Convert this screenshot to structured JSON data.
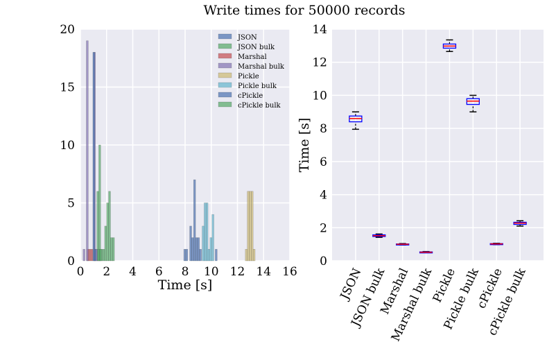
{
  "figure": {
    "suptitle": "Write times for 50000 records"
  },
  "colors": {
    "axes_bg": "#eaeaf2",
    "grid": "#ffffff",
    "box_edge": "#0000ff",
    "median": "#ff0000",
    "whisker": "#000000"
  },
  "chart_data": [
    {
      "type": "histogram",
      "xlabel": "Time [s]",
      "ylabel": "",
      "xlim": [
        0,
        16
      ],
      "ylim": [
        0,
        20
      ],
      "xticks": [
        "0",
        "2",
        "4",
        "6",
        "8",
        "10",
        "12",
        "14",
        "16"
      ],
      "yticks": [
        "0",
        "5",
        "10",
        "15",
        "20"
      ],
      "grid": true,
      "legend_position": "top-right",
      "bin_width": 0.15,
      "series": [
        {
          "name": "JSON",
          "color": "#4c72b0",
          "bins": [
            [
              7.9,
              1
            ],
            [
              8.05,
              1
            ],
            [
              8.35,
              3
            ],
            [
              8.5,
              2
            ],
            [
              8.65,
              7
            ],
            [
              8.8,
              2
            ],
            [
              8.95,
              2
            ],
            [
              9.1,
              1
            ],
            [
              10.3,
              1
            ]
          ]
        },
        {
          "name": "JSON bulk",
          "color": "#55a868",
          "bins": [
            [
              1.25,
              6
            ],
            [
              1.4,
              10
            ],
            [
              1.55,
              1
            ],
            [
              1.7,
              1
            ],
            [
              1.85,
              3
            ],
            [
              2.0,
              5
            ],
            [
              2.15,
              6
            ],
            [
              2.3,
              2
            ],
            [
              2.45,
              2
            ]
          ]
        },
        {
          "name": "Marshal",
          "color": "#c44e52",
          "bins": [
            [
              0.5,
              1
            ],
            [
              0.65,
              1
            ],
            [
              0.8,
              1
            ]
          ]
        },
        {
          "name": "Marshal bulk",
          "color": "#8172b2",
          "bins": [
            [
              0.2,
              1
            ],
            [
              0.45,
              19
            ],
            [
              1.0,
              18
            ],
            [
              1.15,
              1
            ]
          ]
        },
        {
          "name": "Pickle",
          "color": "#ccb974",
          "bins": [
            [
              12.6,
              1
            ],
            [
              12.75,
              6
            ],
            [
              12.9,
              6
            ],
            [
              13.05,
              6
            ],
            [
              13.2,
              1
            ]
          ]
        },
        {
          "name": "Pickle bulk",
          "color": "#64b5cd",
          "bins": [
            [
              9.3,
              3
            ],
            [
              9.45,
              5
            ],
            [
              9.6,
              5
            ],
            [
              9.75,
              1
            ],
            [
              9.9,
              2
            ],
            [
              10.05,
              4
            ]
          ]
        },
        {
          "name": "cPickle",
          "color": "#4c72b0",
          "bins": [
            [
              0.95,
              18
            ],
            [
              1.05,
              1
            ]
          ]
        },
        {
          "name": "cPickle bulk",
          "color": "#55a868",
          "bins": [
            [
              1.3,
              1
            ],
            [
              1.45,
              1
            ]
          ]
        }
      ]
    },
    {
      "type": "boxplot",
      "xlabel": "",
      "ylabel": "Time [s]",
      "ylim": [
        0,
        14
      ],
      "yticks": [
        "0",
        "2",
        "4",
        "6",
        "8",
        "10",
        "12",
        "14"
      ],
      "categories": [
        "JSON",
        "JSON bulk",
        "Marshal",
        "Marshal bulk",
        "Pickle",
        "Pickle bulk",
        "cPickle",
        "cPickle bulk"
      ],
      "grid": true,
      "boxes": [
        {
          "whislo": 7.95,
          "q1": 8.4,
          "med": 8.6,
          "q3": 8.75,
          "whishi": 9.0
        },
        {
          "whislo": 1.42,
          "q1": 1.47,
          "med": 1.52,
          "q3": 1.57,
          "whishi": 1.62
        },
        {
          "whislo": 0.96,
          "q1": 0.98,
          "med": 1.0,
          "q3": 1.02,
          "whishi": 1.04
        },
        {
          "whislo": 0.5,
          "q1": 0.51,
          "med": 0.52,
          "q3": 0.54,
          "whishi": 0.56
        },
        {
          "whislo": 12.65,
          "q1": 12.85,
          "med": 12.98,
          "q3": 13.1,
          "whishi": 13.35
        },
        {
          "whislo": 9.0,
          "q1": 9.45,
          "med": 9.65,
          "q3": 9.8,
          "whishi": 10.0
        },
        {
          "whislo": 0.98,
          "q1": 1.0,
          "med": 1.02,
          "q3": 1.04,
          "whishi": 1.06
        },
        {
          "whislo": 2.1,
          "q1": 2.2,
          "med": 2.28,
          "q3": 2.33,
          "whishi": 2.42
        }
      ]
    }
  ]
}
